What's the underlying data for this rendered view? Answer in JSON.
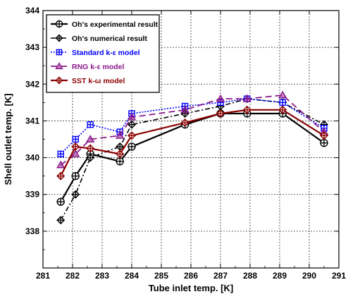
{
  "chart_data": {
    "type": "line",
    "xlabel": "Tube inlet temp. [K]",
    "ylabel": "Shell outlet temp. [K]",
    "xlim": [
      281,
      291
    ],
    "ylim": [
      337,
      344
    ],
    "xticks": [
      "281",
      "282",
      "283",
      "284",
      "285",
      "286",
      "287",
      "288",
      "289",
      "290",
      "291"
    ],
    "yticks": [
      "338",
      "339",
      "340",
      "341",
      "342",
      "343",
      "344"
    ],
    "grid": true,
    "legend_position": "top-left",
    "series": [
      {
        "name": "Oh's experimental result",
        "color": "#000000",
        "dash": "",
        "width": 2.2,
        "marker": "circle-cross",
        "x": [
          281.6,
          282.1,
          282.6,
          283.6,
          284.0,
          285.8,
          287.0,
          287.9,
          289.1,
          290.5
        ],
        "y": [
          338.8,
          339.5,
          340.1,
          339.9,
          340.3,
          340.9,
          341.2,
          341.2,
          341.2,
          340.4
        ]
      },
      {
        "name": "Oh's numerical result",
        "color": "#000000",
        "dash": "7 3 2 3",
        "width": 1.6,
        "marker": "diamond-cross",
        "x": [
          281.6,
          282.1,
          282.6,
          283.6,
          284.0,
          285.8,
          287.0,
          287.9,
          289.1,
          290.5
        ],
        "y": [
          338.3,
          339.0,
          340.0,
          340.3,
          340.9,
          341.2,
          341.4,
          341.6,
          341.5,
          340.9
        ]
      },
      {
        "name": "Standard k-ε model",
        "color": "#0000ff",
        "dash": "2 2",
        "width": 1.6,
        "marker": "square-cross",
        "x": [
          281.6,
          282.1,
          282.6,
          283.6,
          284.0,
          285.8,
          287.0,
          287.9,
          289.1,
          290.5
        ],
        "y": [
          340.1,
          340.5,
          340.9,
          340.7,
          341.2,
          341.4,
          341.5,
          341.6,
          341.5,
          340.8
        ]
      },
      {
        "name": "RNG k-ε model",
        "color": "#8b1a8b",
        "dash": "9 5",
        "width": 1.8,
        "marker": "triangle",
        "x": [
          281.6,
          282.1,
          282.6,
          283.6,
          284.0,
          285.8,
          287.0,
          287.9,
          289.1,
          290.5
        ],
        "y": [
          339.8,
          340.1,
          340.5,
          340.6,
          341.1,
          341.3,
          341.6,
          341.6,
          341.7,
          340.7
        ]
      },
      {
        "name": "SST k-ω model",
        "color": "#8b0000",
        "dash": "",
        "width": 2.2,
        "marker": "diamond-cross",
        "x": [
          281.6,
          282.1,
          282.6,
          283.6,
          284.0,
          285.8,
          287.0,
          287.9,
          289.1,
          290.5
        ],
        "y": [
          339.5,
          340.3,
          340.25,
          340.1,
          340.6,
          340.95,
          341.2,
          341.3,
          341.3,
          340.6
        ]
      }
    ]
  }
}
